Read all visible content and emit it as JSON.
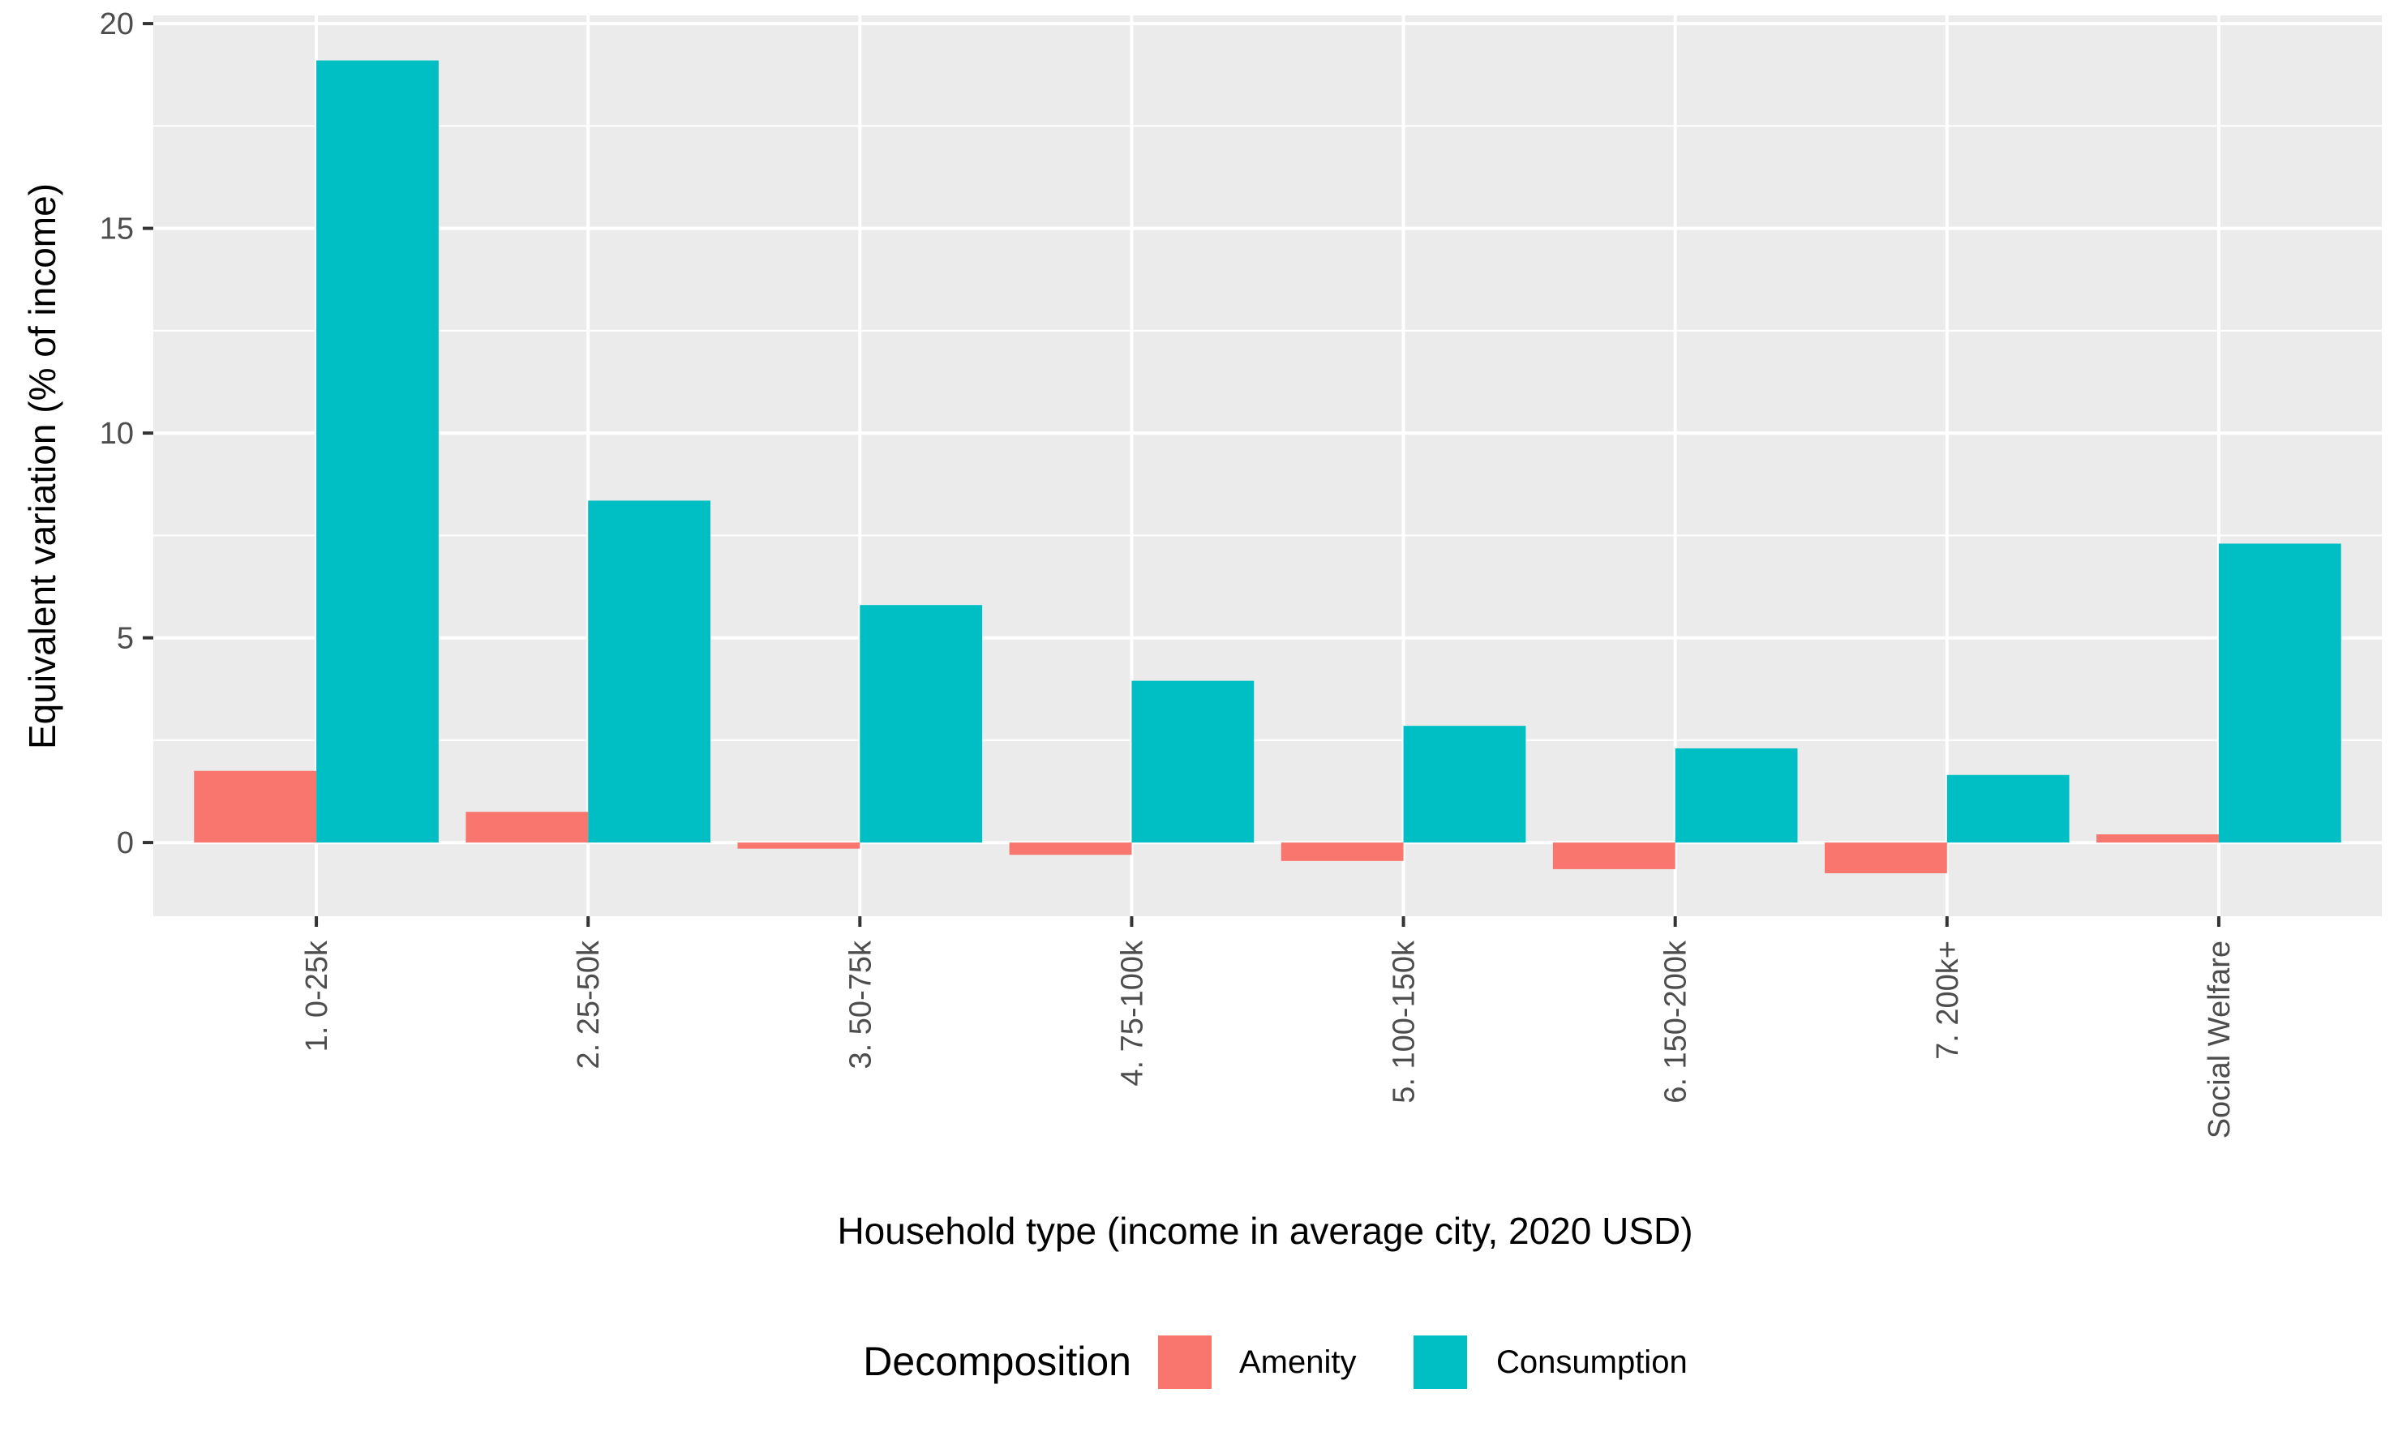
{
  "chart_data": {
    "type": "bar",
    "title": "",
    "xlabel": "Household type (income in average city, 2020 USD)",
    "ylabel": "Equivalent variation (% of income)",
    "ylim": [
      -1.8,
      20.2
    ],
    "yticks": [
      0,
      5,
      10,
      15,
      20
    ],
    "categories": [
      "1. 0-25k",
      "2. 25-50k",
      "3. 50-75k",
      "4. 75-100k",
      "5. 100-150k",
      "6. 150-200k",
      "7. 200k+",
      "Social Welfare"
    ],
    "series": [
      {
        "name": "Amenity",
        "color": "#F8766D",
        "values": [
          1.75,
          0.75,
          -0.15,
          -0.3,
          -0.45,
          -0.65,
          -0.75,
          0.2
        ]
      },
      {
        "name": "Consumption",
        "color": "#00BFC4",
        "values": [
          19.1,
          8.35,
          5.8,
          3.95,
          2.85,
          2.3,
          1.65,
          7.3
        ]
      }
    ],
    "grid": true,
    "legend": {
      "title": "Decomposition",
      "position": "bottom"
    }
  }
}
